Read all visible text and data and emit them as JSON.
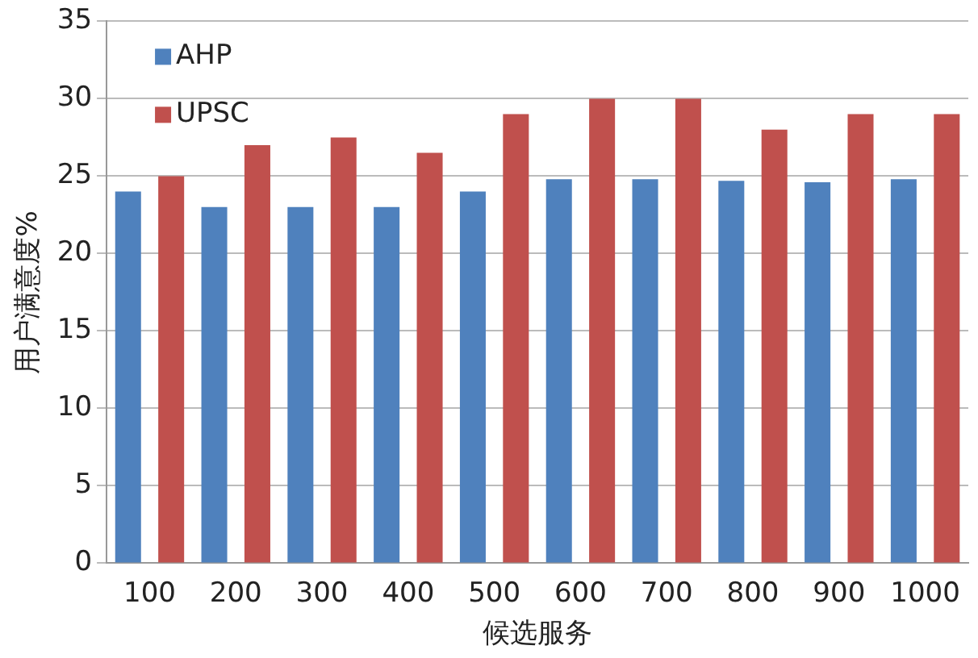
{
  "chart_data": {
    "type": "bar",
    "xlabel": "候选服务",
    "ylabel": "用户满意度%",
    "categories": [
      "100",
      "200",
      "300",
      "400",
      "500",
      "600",
      "700",
      "800",
      "900",
      "1000"
    ],
    "series": [
      {
        "name": "AHP",
        "color": "#4f81bd",
        "values": [
          24,
          23,
          23,
          23,
          24,
          24.8,
          24.8,
          24.7,
          24.6,
          24.8
        ]
      },
      {
        "name": "UPSC",
        "color": "#c0504d",
        "values": [
          25,
          27,
          27.5,
          26.5,
          29,
          30,
          30,
          28,
          29,
          29
        ]
      }
    ],
    "ylim": [
      0,
      35
    ],
    "yticks": [
      0,
      5,
      10,
      15,
      20,
      25,
      30,
      35
    ],
    "grid": "y",
    "legend": "top left"
  }
}
